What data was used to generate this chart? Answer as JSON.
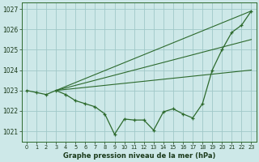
{
  "title": "Graphe pression niveau de la mer (hPa)",
  "bg_color": "#cde8e8",
  "grid_color": "#a0c8c8",
  "line_color": "#2d6a2d",
  "xlim": [
    -0.5,
    23.5
  ],
  "ylim": [
    1020.5,
    1027.3
  ],
  "yticks": [
    1021,
    1022,
    1023,
    1024,
    1025,
    1026,
    1027
  ],
  "xticks": [
    0,
    1,
    2,
    3,
    4,
    5,
    6,
    7,
    8,
    9,
    10,
    11,
    12,
    13,
    14,
    15,
    16,
    17,
    18,
    19,
    20,
    21,
    22,
    23
  ],
  "lines": [
    {
      "x": [
        0,
        1,
        2,
        3,
        4,
        5,
        6,
        7,
        8,
        9,
        10,
        11,
        12,
        13,
        14,
        15,
        16,
        17,
        18,
        19,
        20,
        21,
        22,
        23
      ],
      "y": [
        1023.0,
        1022.9,
        1022.8,
        1023.0,
        1022.8,
        1022.5,
        1022.35,
        1022.2,
        1021.85,
        1020.85,
        1021.6,
        1021.55,
        1021.55,
        1021.05,
        1021.95,
        1022.1,
        1021.85,
        1021.65,
        1022.35,
        1024.0,
        1025.0,
        1025.85,
        1026.2,
        1026.9
      ],
      "marker": true
    },
    {
      "x": [
        3,
        23
      ],
      "y": [
        1023.0,
        1026.9
      ],
      "marker": false
    },
    {
      "x": [
        3,
        23
      ],
      "y": [
        1023.0,
        1025.5
      ],
      "marker": false
    },
    {
      "x": [
        3,
        23
      ],
      "y": [
        1023.0,
        1024.0
      ],
      "marker": false
    }
  ]
}
